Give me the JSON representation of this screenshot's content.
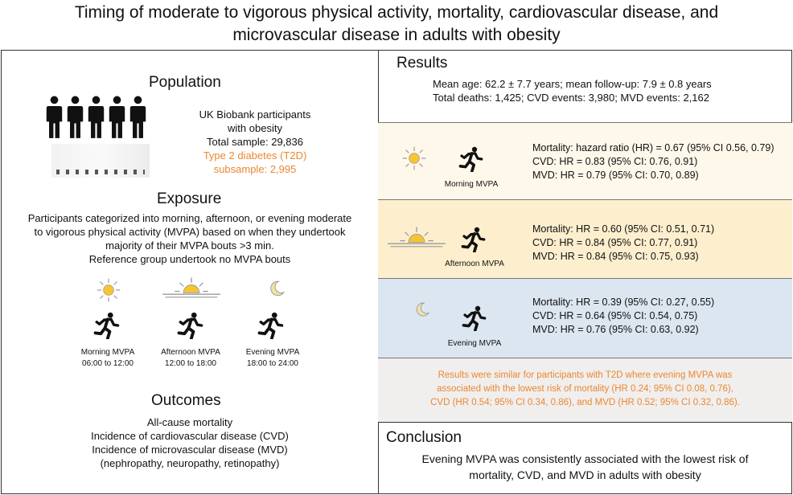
{
  "title": {
    "line1": "Timing of moderate to vigorous physical activity, mortality, cardiovascular disease, and",
    "line2": "microvascular disease in adults with obesity"
  },
  "population": {
    "heading": "Population",
    "line1": "UK Biobank participants",
    "line2": "with obesity",
    "line3": "Total sample: 29,836",
    "line4": "Type 2 diabetes (T2D)",
    "line5": "subsample: 2,995"
  },
  "exposure": {
    "heading": "Exposure",
    "line1": "Participants categorized into morning, afternoon, or evening moderate",
    "line2": "to vigorous physical activity (MVPA) based on when they undertook",
    "line3": "majority  of their MVPA bouts >3 min.",
    "line4": "Reference group undertook no MVPA bouts",
    "groups": [
      {
        "label": "Morning MVPA",
        "time": "06:00  to 12:00"
      },
      {
        "label": "Afternoon MVPA",
        "time": "12:00 to 18:00"
      },
      {
        "label": "Evening MVPA",
        "time": "18:00 to 24:00"
      }
    ]
  },
  "outcomes": {
    "heading": "Outcomes",
    "line1": "All-cause mortality",
    "line2": "Incidence of cardiovascular disease (CVD)",
    "line3": "Incidence of microvascular disease (MVD)",
    "line4": "(nephropathy, neuropathy, retinopathy)"
  },
  "results": {
    "heading": "Results",
    "line1": "Mean age: 62.2 ± 7.7 years; mean follow-up: 7.9 ± 0.8 years",
    "line2": "Total deaths: 1,425; CVD events: 3,980; MVD events:  2,162",
    "morning": {
      "label": "Morning MVPA",
      "mortality": "Mortality: hazard ratio (HR) = 0.67 (95% CI 0.56, 0.79)",
      "cvd": "CVD: HR = 0.83 (95% CI: 0.76, 0.91)",
      "mvd": "MVD: HR = 0.79 (95% CI: 0.70, 0.89)",
      "bg": "#fdf8ea"
    },
    "afternoon": {
      "label": "Afternoon MVPA",
      "mortality": "Mortality: HR = 0.60 (95% CI: 0.51, 0.71)",
      "cvd": "CVD: HR =  0.84 (95% CI: 0.77, 0.91)",
      "mvd": "MVD: HR = 0.84 (95% CI: 0.75, 0.93)",
      "bg": "#fdefce"
    },
    "evening": {
      "label": "Evening MVPA",
      "mortality": "Mortality: HR = 0.39 (95% CI: 0.27, 0.55)",
      "cvd": "CVD: HR = 0.64 (95% CI: 0.54, 0.75)",
      "mvd": "MVD: HR = 0.76 (95% CI: 0.63, 0.92)",
      "bg": "#dbe6f1"
    },
    "t2d": {
      "line1": "Results were similar for participants with T2D where evening MVPA was",
      "line2": "associated with the lowest risk of mortality (HR 0.24; 95% CI 0.08, 0.76),",
      "line3": "CVD (HR 0.54; 95% CI 0.34, 0.86), and MVD (HR 0.52; 95% CI 0.32, 0.86).",
      "bg": "#f1eeee"
    }
  },
  "conclusion": {
    "heading": "Conclusion",
    "line1": "Evening MVPA was consistently associated with the lowest risk of",
    "line2": "mortality, CVD, and MVD in adults with obesity"
  },
  "colors": {
    "accent": "#e8892f",
    "sun": "#f7c531",
    "moon": "#f3e2a6"
  },
  "icons": [
    "person-icon",
    "sun-icon",
    "sunset-icon",
    "moon-icon",
    "runner-icon"
  ]
}
